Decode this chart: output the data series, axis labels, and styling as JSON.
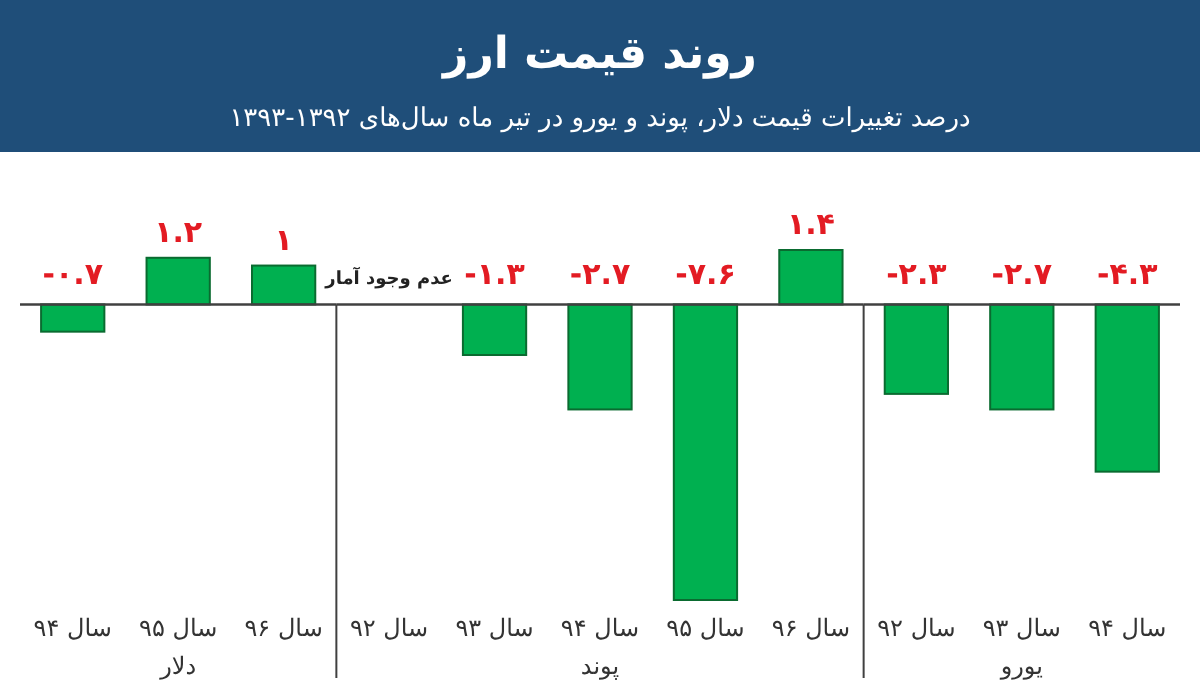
{
  "chart_data": [
    {
      "type": "bar",
      "xlabel": "دلار",
      "categories": [
        "سال ۹۴",
        "سال ۹۵",
        "سال ۹۶"
      ],
      "series": [
        {
          "color": "#00b050",
          "values": [
            -0.7,
            1.2,
            1
          ],
          "value_labels": [
            "-۰.۷",
            "۱.۲",
            "۱"
          ]
        }
      ]
    },
    {
      "type": "bar",
      "title": "روند قیمت ارز",
      "subtitle": "درصد تغییرات قیمت دلار، پوند و یورو در تیر ماه سال‌های ۱۳۹۲-۱۳۹۳",
      "xlabel": "پوند",
      "categories": [
        "سال ۹۲",
        "سال ۹۳",
        "سال ۹۴",
        "سال ۹۵",
        "سال ۹۶"
      ],
      "series": [
        {
          "color": "#00b050",
          "values": [
            null,
            -1.3,
            -2.7,
            -7.6,
            1.4
          ],
          "value_labels": [
            null,
            "-۱.۳",
            "-۲.۷",
            "-۷.۶",
            "۱.۴"
          ]
        }
      ],
      "annotations": [
        "عدم وجود آمار"
      ]
    },
    {
      "type": "bar",
      "xlabel": "یورو",
      "categories": [
        "سال ۹۲",
        "سال ۹۳",
        "سال ۹۴"
      ],
      "series": [
        {
          "color": "#00b050",
          "values": [
            -2.3,
            -2.7,
            -4.3
          ],
          "value_labels": [
            "-۲.۳",
            "-۲.۷",
            "-۴.۳"
          ]
        }
      ]
    }
  ]
}
